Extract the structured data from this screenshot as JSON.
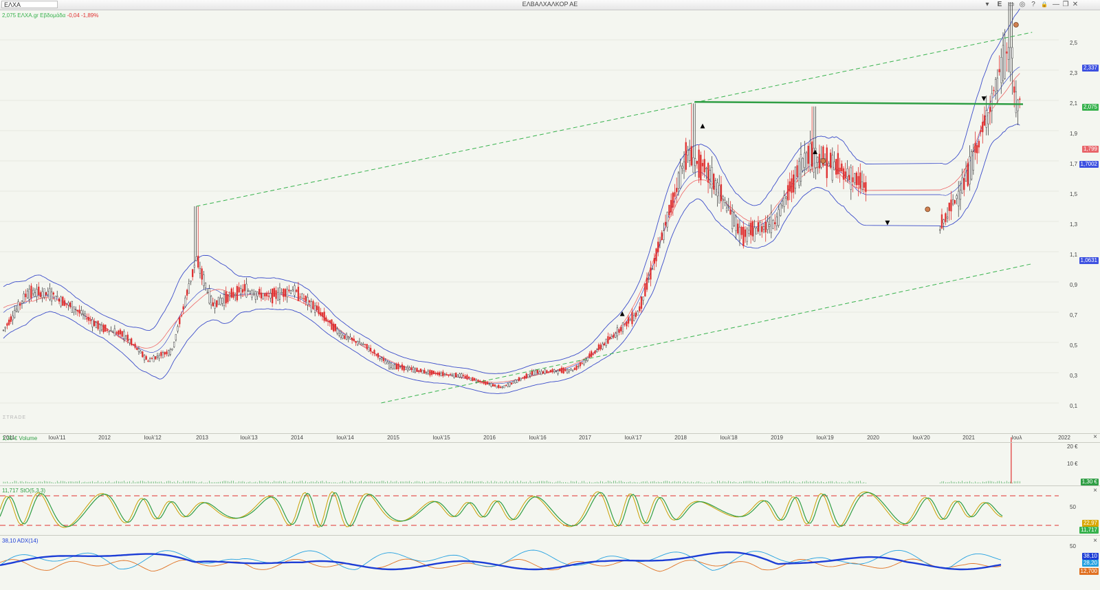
{
  "window": {
    "symbol": "ΕΛΧΑ",
    "title": "ΕΛΒΑΛΧΑΛΚΟΡ ΑΕ",
    "buttons": {
      "dropdown": "▾",
      "e": "E",
      "save": "▭",
      "glasses": "◎",
      "help": "?",
      "lock": "🔒",
      "min": "—",
      "restore": "❐",
      "close": "✕"
    }
  },
  "main_panel": {
    "legend_green": "2,075 ΕΛΧΑ.gr Εβδομάδα",
    "legend_red": "-0,04 -1,89%",
    "watermark": "ΣTRADE",
    "y_ticks": [
      "2,5",
      "2,3",
      "2,1",
      "1,9",
      "1,7",
      "1,5",
      "1,3",
      "1,1",
      "0,9",
      "0,7",
      "0,5",
      "0,3",
      "0,1"
    ],
    "tags": [
      {
        "text": "2,337",
        "color": "#3c50e0"
      },
      {
        "text": "2,075",
        "color": "#37b24d"
      },
      {
        "text": "1,799",
        "color": "#e8656a"
      },
      {
        "text": "1,7002",
        "color": "#3c50e0"
      },
      {
        "text": "1,0631",
        "color": "#3c50e0"
      }
    ],
    "x_ticks": [
      "2011",
      "Ιουλ'11",
      "2012",
      "Ιουλ'12",
      "2013",
      "Ιουλ'13",
      "2014",
      "Ιουλ'14",
      "2015",
      "Ιουλ'15",
      "2016",
      "Ιουλ'16",
      "2017",
      "Ιουλ'17",
      "2018",
      "Ιουλ'18",
      "2019",
      "Ιουλ'19",
      "2020",
      "Ιουλ'20",
      "2021",
      "Ιουλ",
      "2022"
    ]
  },
  "volume_panel": {
    "legend": "1,30 € Volume",
    "y_ticks": [
      "20 €",
      "10 €"
    ],
    "tag": "1,30 €"
  },
  "sto_panel": {
    "legend": "11,717 StO(5,3,3)",
    "y_ticks": [
      "50"
    ],
    "tags": [
      "22,97",
      "11,717"
    ]
  },
  "adx_panel": {
    "legend": "38,10 ADX(14)",
    "y_ticks": [
      "50"
    ],
    "tags": [
      "38,10",
      "28,20",
      "12,700"
    ]
  },
  "close_icon": "×",
  "colors": {
    "up": "#444444",
    "down": "#e03131",
    "bands": "#3b4cca",
    "ma": "#ee6666",
    "support": "#2f9e44",
    "trend": "#37b24d",
    "sto_k": "#c8a000",
    "sto_d": "#2f9e44",
    "adx": "#1c3dd6",
    "plus_di": "#22a0e0",
    "minus_di": "#e07020"
  },
  "chart_data": {
    "type": "candlestick",
    "title": "ΕΛΒΑΛΧΑΛΚΟΡ ΑΕ",
    "x_range": [
      "2011-01",
      "2022-01"
    ],
    "y_range": [
      0.1,
      2.6
    ],
    "close_approx": [
      {
        "x": "2011-01",
        "y": 0.58
      },
      {
        "x": "2011-04",
        "y": 0.83
      },
      {
        "x": "2011-07",
        "y": 0.82
      },
      {
        "x": "2011-10",
        "y": 0.72
      },
      {
        "x": "2012-01",
        "y": 0.6
      },
      {
        "x": "2012-04",
        "y": 0.55
      },
      {
        "x": "2012-07",
        "y": 0.38
      },
      {
        "x": "2012-10",
        "y": 0.45
      },
      {
        "x": "2013-01",
        "y": 1.05
      },
      {
        "x": "2013-03",
        "y": 0.75
      },
      {
        "x": "2013-07",
        "y": 0.85
      },
      {
        "x": "2013-10",
        "y": 0.8
      },
      {
        "x": "2014-01",
        "y": 0.85
      },
      {
        "x": "2014-04",
        "y": 0.72
      },
      {
        "x": "2014-07",
        "y": 0.55
      },
      {
        "x": "2014-10",
        "y": 0.48
      },
      {
        "x": "2015-01",
        "y": 0.35
      },
      {
        "x": "2015-06",
        "y": 0.3
      },
      {
        "x": "2015-10",
        "y": 0.28
      },
      {
        "x": "2016-03",
        "y": 0.2
      },
      {
        "x": "2016-07",
        "y": 0.3
      },
      {
        "x": "2016-12",
        "y": 0.32
      },
      {
        "x": "2017-04",
        "y": 0.5
      },
      {
        "x": "2017-08",
        "y": 0.7
      },
      {
        "x": "2017-11",
        "y": 1.2
      },
      {
        "x": "2018-02",
        "y": 1.75
      },
      {
        "x": "2018-05",
        "y": 1.6
      },
      {
        "x": "2018-09",
        "y": 1.2
      },
      {
        "x": "2019-01",
        "y": 1.3
      },
      {
        "x": "2019-05",
        "y": 1.75
      },
      {
        "x": "2019-09",
        "y": 1.65
      },
      {
        "x": "2020-09",
        "y": 1.2
      },
      {
        "x": "2021-01",
        "y": 1.6
      },
      {
        "x": "2021-04",
        "y": 2.1
      },
      {
        "x": "2021-06",
        "y": 2.45
      },
      {
        "x": "2021-07",
        "y": 2.075
      }
    ],
    "resistance": 2.075,
    "trend_upper": [
      {
        "x": "2013-01",
        "y": 1.4
      },
      {
        "x": "2021-09",
        "y": 2.55
      }
    ],
    "trend_lower": [
      {
        "x": "2014-12",
        "y": 0.1
      },
      {
        "x": "2021-09",
        "y": 1.02
      }
    ]
  }
}
